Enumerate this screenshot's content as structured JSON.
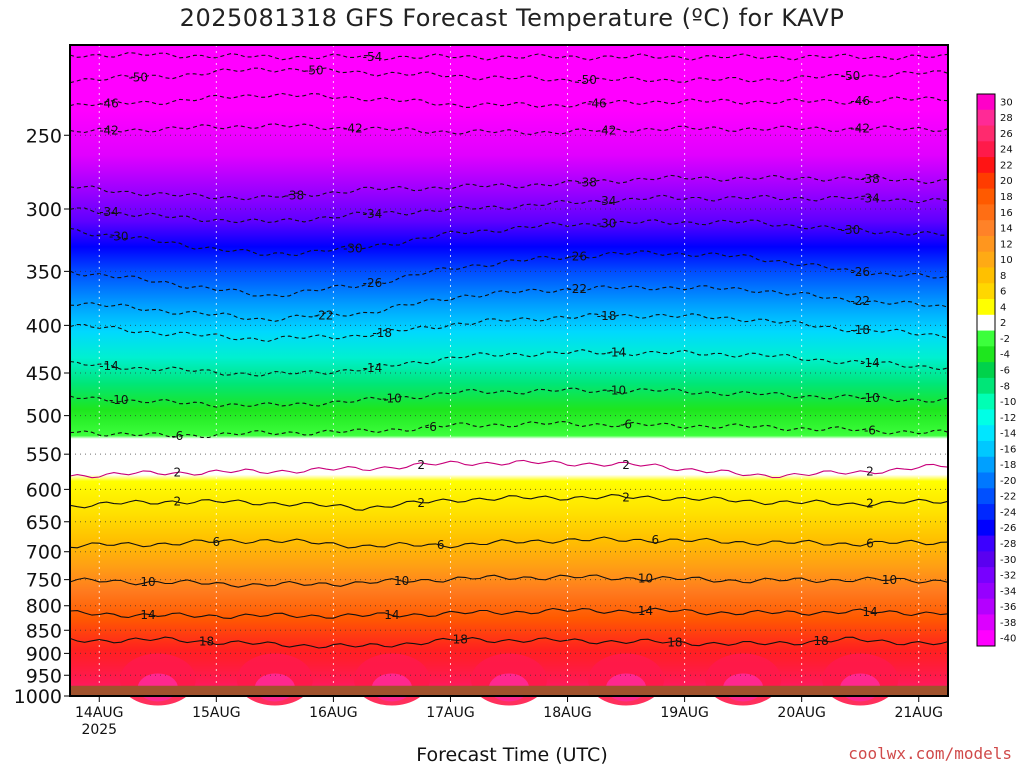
{
  "chart_data": {
    "type": "heatmap",
    "title": "2025081318 GFS Forecast Temperature (ºC) for KAVP",
    "xlabel": "Forecast Time (UTC)",
    "ylabel": "",
    "credit": "coolwx.com/models",
    "x_ticks": [
      {
        "day": "14AUG",
        "year": "2025",
        "hours": 6
      },
      {
        "day": "15AUG",
        "year": "",
        "hours": 30
      },
      {
        "day": "16AUG",
        "year": "",
        "hours": 54
      },
      {
        "day": "17AUG",
        "year": "",
        "hours": 78
      },
      {
        "day": "18AUG",
        "year": "",
        "hours": 102
      },
      {
        "day": "19AUG",
        "year": "",
        "hours": 126
      },
      {
        "day": "20AUG",
        "year": "",
        "hours": 150
      },
      {
        "day": "21AUG",
        "year": "",
        "hours": 174
      }
    ],
    "x_range_hours": [
      0,
      180
    ],
    "y_ticks": [
      250,
      300,
      350,
      400,
      450,
      500,
      550,
      600,
      650,
      700,
      750,
      800,
      850,
      900,
      950,
      1000
    ],
    "y_range_hpa": [
      200,
      1000
    ],
    "y_scale": "log",
    "ground_pressure_hpa": 975,
    "colorbar": {
      "labels": [
        "30",
        "28",
        "26",
        "24",
        "22",
        "20",
        "18",
        "16",
        "14",
        "12",
        "10",
        "8",
        "6",
        "4",
        "2",
        "-2",
        "-4",
        "-6",
        "-8",
        "-10",
        "-12",
        "-14",
        "-16",
        "-18",
        "-20",
        "-22",
        "-24",
        "-26",
        "-28",
        "-30",
        "-32",
        "-34",
        "-36",
        "-38",
        "-40"
      ],
      "colors": [
        "#ff00c8",
        "#ff2a96",
        "#ff2a6e",
        "#ff1a4a",
        "#ff1414",
        "#ff3c00",
        "#ff5a00",
        "#ff6e14",
        "#ff8228",
        "#ff961e",
        "#ffaa14",
        "#ffc000",
        "#ffd700",
        "#ffff00",
        "#ffffff",
        "#3cff3c",
        "#1ee61e",
        "#00d24b",
        "#00e678",
        "#00ffb4",
        "#00ffe6",
        "#00e6ff",
        "#00c8ff",
        "#00a0ff",
        "#0078ff",
        "#0050ff",
        "#0028ff",
        "#0000ff",
        "#3c00ff",
        "#5a00f0",
        "#7800ff",
        "#9600ff",
        "#b400ff",
        "#dc00ff",
        "#ff00ff"
      ]
    },
    "isotherms": [
      {
        "temp": -54,
        "pressure_by_day": [
          205,
          205,
          206,
          206,
          206,
          206,
          206,
          206,
          206,
          206
        ],
        "labels": [
          {
            "text": "-54",
            "hours": 62
          }
        ]
      },
      {
        "temp": -50,
        "pressure_by_day": [
          218,
          216,
          212,
          214,
          216,
          218,
          218,
          218,
          216,
          214
        ],
        "labels": [
          {
            "text": "-50",
            "hours": 14
          },
          {
            "text": "-50",
            "hours": 50
          },
          {
            "text": "-50",
            "hours": 106
          },
          {
            "text": "-50",
            "hours": 160
          }
        ]
      },
      {
        "temp": -46,
        "pressure_by_day": [
          232,
          230,
          226,
          228,
          232,
          232,
          230,
          230,
          230,
          228
        ],
        "labels": [
          {
            "text": "-46",
            "hours": 8
          },
          {
            "text": "-46",
            "hours": 108
          },
          {
            "text": "-46",
            "hours": 162
          }
        ]
      },
      {
        "temp": -42,
        "pressure_by_day": [
          248,
          246,
          244,
          246,
          248,
          248,
          246,
          246,
          246,
          246
        ],
        "labels": [
          {
            "text": "-42",
            "hours": 8
          },
          {
            "text": "-42",
            "hours": 58
          },
          {
            "text": "-42",
            "hours": 110
          },
          {
            "text": "-42",
            "hours": 162
          }
        ]
      },
      {
        "temp": -38,
        "pressure_by_day": [
          284,
          290,
          292,
          286,
          284,
          282,
          278,
          278,
          278,
          280
        ],
        "labels": [
          {
            "text": "-38",
            "hours": 46
          },
          {
            "text": "-38",
            "hours": 106
          },
          {
            "text": "-38",
            "hours": 164
          }
        ]
      },
      {
        "temp": -34,
        "pressure_by_day": [
          300,
          306,
          310,
          304,
          300,
          296,
          292,
          292,
          292,
          294
        ],
        "labels": [
          {
            "text": "-34",
            "hours": 8
          },
          {
            "text": "-34",
            "hours": 62
          },
          {
            "text": "-34",
            "hours": 110
          },
          {
            "text": "-34",
            "hours": 164
          }
        ]
      },
      {
        "temp": -30,
        "pressure_by_day": [
          316,
          326,
          336,
          330,
          318,
          312,
          310,
          310,
          316,
          320
        ],
        "labels": [
          {
            "text": "-30",
            "hours": 10
          },
          {
            "text": "-30",
            "hours": 58
          },
          {
            "text": "-30",
            "hours": 110
          },
          {
            "text": "-30",
            "hours": 160
          }
        ]
      },
      {
        "temp": -26,
        "pressure_by_day": [
          350,
          360,
          372,
          362,
          346,
          338,
          334,
          338,
          350,
          356
        ],
        "labels": [
          {
            "text": "-26",
            "hours": 62
          },
          {
            "text": "-26",
            "hours": 104
          },
          {
            "text": "-26",
            "hours": 162
          }
        ]
      },
      {
        "temp": -22,
        "pressure_by_day": [
          378,
          386,
          394,
          388,
          372,
          366,
          364,
          366,
          376,
          382
        ],
        "labels": [
          {
            "text": "-22",
            "hours": 52
          },
          {
            "text": "-22",
            "hours": 104
          },
          {
            "text": "-22",
            "hours": 162
          }
        ]
      },
      {
        "temp": -18,
        "pressure_by_day": [
          400,
          408,
          414,
          410,
          398,
          392,
          390,
          394,
          404,
          410
        ],
        "labels": [
          {
            "text": "-18",
            "hours": 64
          },
          {
            "text": "-18",
            "hours": 110
          },
          {
            "text": "-18",
            "hours": 162
          }
        ]
      },
      {
        "temp": -14,
        "pressure_by_day": [
          440,
          446,
          452,
          446,
          432,
          428,
          428,
          430,
          438,
          444
        ],
        "labels": [
          {
            "text": "-14",
            "hours": 8
          },
          {
            "text": "-14",
            "hours": 62
          },
          {
            "text": "-14",
            "hours": 112
          },
          {
            "text": "-14",
            "hours": 164
          }
        ]
      },
      {
        "temp": -10,
        "pressure_by_day": [
          478,
          484,
          488,
          482,
          472,
          470,
          470,
          474,
          478,
          482
        ],
        "labels": [
          {
            "text": "-10",
            "hours": 10
          },
          {
            "text": "-10",
            "hours": 66
          },
          {
            "text": "-10",
            "hours": 112
          },
          {
            "text": "-10",
            "hours": 164
          }
        ]
      },
      {
        "temp": -6,
        "pressure_by_day": [
          520,
          526,
          522,
          520,
          512,
          510,
          512,
          514,
          518,
          522
        ],
        "labels": [
          {
            "text": "-6",
            "hours": 22
          },
          {
            "text": "-6",
            "hours": 74
          },
          {
            "text": "-6",
            "hours": 114
          },
          {
            "text": "-6",
            "hours": 164
          }
        ]
      },
      {
        "temp": 2,
        "pressure_by_day": [
          580,
          576,
          574,
          570,
          562,
          562,
          566,
          580,
          576,
          566
        ],
        "labels": [
          {
            "text": "2",
            "hours": 22
          },
          {
            "text": "2",
            "hours": 72
          },
          {
            "text": "2",
            "hours": 114
          },
          {
            "text": "2",
            "hours": 164
          }
        ]
      },
      {
        "temp": 2,
        "pressure_by_day": [
          625,
          618,
          620,
          628,
          615,
          612,
          612,
          618,
          622,
          618
        ],
        "labels": [
          {
            "text": "2",
            "hours": 22
          },
          {
            "text": "2",
            "hours": 72
          },
          {
            "text": "2",
            "hours": 114
          },
          {
            "text": "2",
            "hours": 164
          }
        ]
      },
      {
        "temp": 6,
        "pressure_by_day": [
          690,
          686,
          680,
          690,
          688,
          680,
          680,
          684,
          686,
          684
        ],
        "labels": [
          {
            "text": "6",
            "hours": 30
          },
          {
            "text": "6",
            "hours": 76
          },
          {
            "text": "6",
            "hours": 120
          },
          {
            "text": "6",
            "hours": 164
          }
        ]
      },
      {
        "temp": 10,
        "pressure_by_day": [
          752,
          755,
          760,
          756,
          748,
          745,
          748,
          752,
          750,
          752
        ],
        "labels": [
          {
            "text": "10",
            "hours": 16
          },
          {
            "text": "10",
            "hours": 68
          },
          {
            "text": "10",
            "hours": 118
          },
          {
            "text": "10",
            "hours": 168
          }
        ]
      },
      {
        "temp": 14,
        "pressure_by_day": [
          815,
          820,
          820,
          820,
          815,
          810,
          810,
          815,
          812,
          815
        ],
        "labels": [
          {
            "text": "14",
            "hours": 16
          },
          {
            "text": "14",
            "hours": 66
          },
          {
            "text": "14",
            "hours": 118
          },
          {
            "text": "14",
            "hours": 164
          }
        ]
      },
      {
        "temp": 18,
        "pressure_by_day": [
          872,
          870,
          880,
          885,
          870,
          872,
          875,
          880,
          870,
          880
        ],
        "labels": [
          {
            "text": "18",
            "hours": 28
          },
          {
            "text": "18",
            "hours": 80
          },
          {
            "text": "18",
            "hours": 124
          },
          {
            "text": "18",
            "hours": 154
          }
        ]
      }
    ]
  }
}
